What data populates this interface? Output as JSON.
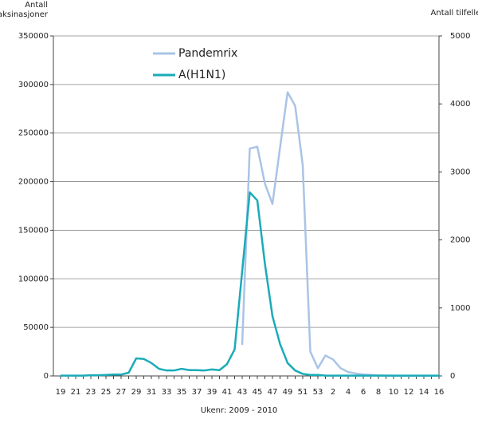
{
  "chart_data": {
    "type": "line",
    "ylabel": "Antall vaksinasjoner",
    "y2label": "Antall tilfeller",
    "xlabel": "Ukenr: 2009 - 2010",
    "categories": [
      "19",
      null,
      "21",
      null,
      "23",
      null,
      "25",
      null,
      "27",
      null,
      "29",
      null,
      "31",
      null,
      "33",
      null,
      "35",
      null,
      "37",
      null,
      "39",
      null,
      "41",
      null,
      "43",
      null,
      "45",
      null,
      "47",
      null,
      "49",
      null,
      "51",
      null,
      "53",
      null,
      "2",
      null,
      "4",
      null,
      "6",
      null,
      "8",
      null,
      "10",
      null,
      "12",
      null,
      "14",
      null,
      "16"
    ],
    "series": [
      {
        "name": "Pandemrix",
        "color": "#a9c4e6",
        "axis": "y",
        "values": [
          null,
          null,
          null,
          null,
          null,
          null,
          null,
          null,
          null,
          null,
          null,
          null,
          null,
          null,
          null,
          null,
          null,
          null,
          null,
          null,
          null,
          null,
          null,
          null,
          32000,
          234000,
          236000,
          198000,
          177000,
          235000,
          292000,
          278000,
          217000,
          25000,
          8000,
          21000,
          17000,
          8000,
          4000,
          2500,
          1500,
          1000,
          500,
          300,
          200,
          150,
          100,
          100,
          100,
          100,
          100
        ]
      },
      {
        "name": "A(H1N1)",
        "color": "#1aabb8",
        "axis": "y2",
        "values": [
          5,
          5,
          5,
          5,
          10,
          10,
          15,
          20,
          20,
          47,
          258,
          250,
          190,
          105,
          80,
          80,
          105,
          85,
          85,
          80,
          95,
          85,
          175,
          390,
          1540,
          2700,
          2580,
          1650,
          880,
          470,
          190,
          80,
          30,
          15,
          15,
          5,
          5,
          5,
          5,
          5,
          5,
          5,
          5,
          5,
          5,
          5,
          5,
          5,
          5,
          5,
          5
        ]
      }
    ],
    "ylim": [
      0,
      350000
    ],
    "yticks": [
      0,
      50000,
      100000,
      150000,
      200000,
      250000,
      300000,
      350000
    ],
    "y2lim": [
      0,
      5000
    ],
    "y2ticks": [
      0,
      1000,
      2000,
      3000,
      4000,
      5000
    ],
    "grid": true,
    "legend": "top-left"
  }
}
